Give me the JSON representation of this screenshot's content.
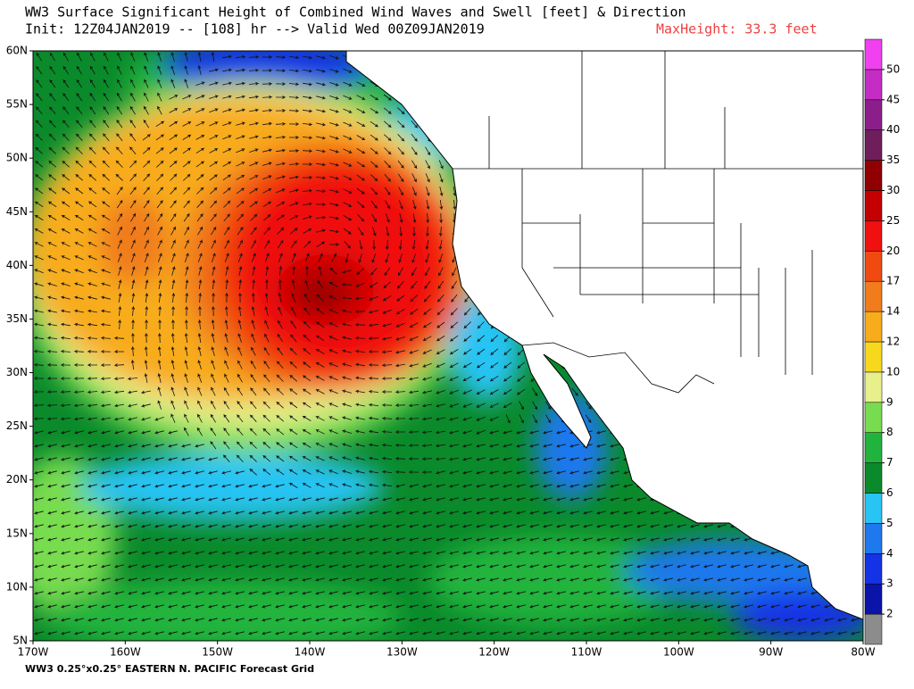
{
  "title": "WW3 Surface Significant Height of Combined Wind Waves and Swell [feet] & Direction",
  "subtitle": "Init: 12Z04JAN2019 -- [108] hr --> Valid Wed 00Z09JAN2019",
  "max_height": "MaxHeight: 33.3 feet",
  "lat_labels": [
    "60N",
    "55N",
    "50N",
    "45N",
    "40N",
    "35N",
    "30N",
    "25N",
    "20N",
    "15N",
    "10N",
    "5N"
  ],
  "lon_labels": [
    "170W",
    "160W",
    "150W",
    "140W",
    "130W",
    "120W",
    "110W",
    "100W",
    "90W",
    "80W"
  ],
  "colorbar": {
    "levels": [
      2,
      3,
      4,
      5,
      6,
      7,
      8,
      9,
      10,
      12,
      14,
      17,
      20,
      25,
      30,
      35,
      40,
      45,
      50
    ],
    "colors": [
      "#8c8c8c",
      "#0a14a8",
      "#1432e6",
      "#1e78ee",
      "#28c4f4",
      "#0a8a2a",
      "#20b43c",
      "#78dc50",
      "#e8f08c",
      "#f8d81c",
      "#f8ac1c",
      "#f07c1c",
      "#f04a10",
      "#f01010",
      "#c40000",
      "#900000",
      "#6e1e5a",
      "#8c1e8c",
      "#c42cc4",
      "#f040f0"
    ]
  },
  "footer": "WW3 0.25°x0.25° EASTERN N. PACIFIC Forecast Grid"
}
